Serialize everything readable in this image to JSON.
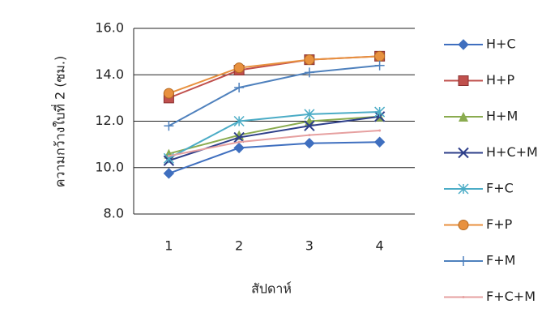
{
  "chart_data": {
    "type": "line",
    "x_label": "สัปดาห์",
    "y_label": "ความกว้างใบที่ 2 (ซม.)",
    "categories": [
      "1",
      "2",
      "3",
      "4"
    ],
    "ylim": [
      8,
      16
    ],
    "yticks": [
      {
        "value": 8,
        "label": "8.0"
      },
      {
        "value": 10,
        "label": "10.0"
      },
      {
        "value": 12,
        "label": "12.0"
      },
      {
        "value": 14,
        "label": "14.0"
      },
      {
        "value": 16,
        "label": "16.0"
      }
    ],
    "grid": true,
    "legend": "right",
    "series": [
      {
        "name": "H+C",
        "color": "#3f6fbf",
        "marker": "diamond",
        "values": [
          9.75,
          10.85,
          11.05,
          11.1
        ]
      },
      {
        "name": "H+P",
        "color": "#c0504d",
        "marker": "square",
        "values": [
          13.0,
          14.2,
          14.65,
          14.8
        ]
      },
      {
        "name": "H+M",
        "color": "#8aab4f",
        "marker": "triangle",
        "values": [
          10.6,
          11.4,
          12.0,
          12.2
        ]
      },
      {
        "name": "H+C+M",
        "color": "#2e3f8a",
        "marker": "x",
        "values": [
          10.3,
          11.3,
          11.8,
          12.2
        ]
      },
      {
        "name": "F+C",
        "color": "#4bacc6",
        "marker": "star",
        "values": [
          10.4,
          12.0,
          12.3,
          12.4
        ]
      },
      {
        "name": "F+P",
        "color": "#e8913f",
        "marker": "circle",
        "values": [
          13.2,
          14.3,
          14.65,
          14.8
        ]
      },
      {
        "name": "F+M",
        "color": "#4f81bd",
        "marker": "plus",
        "values": [
          11.8,
          13.45,
          14.1,
          14.4
        ]
      },
      {
        "name": "F+C+M",
        "color": "#e6a0a0",
        "marker": "none",
        "values": [
          10.5,
          11.1,
          11.4,
          11.6
        ]
      }
    ]
  }
}
